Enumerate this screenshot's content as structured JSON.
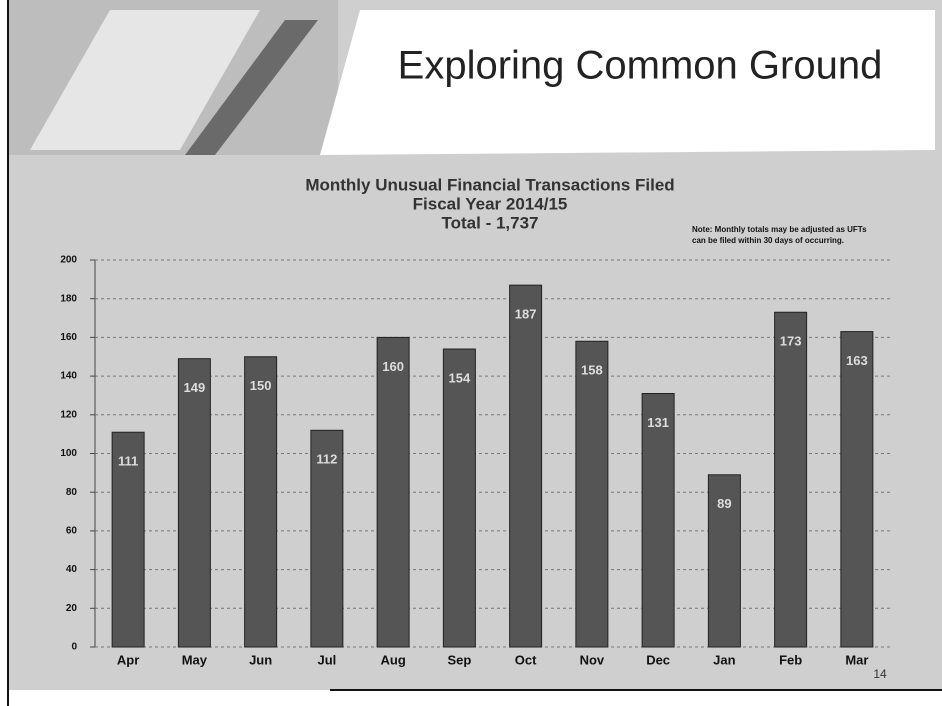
{
  "header": {
    "title": "Exploring Common Ground"
  },
  "page_number": "14",
  "chart_data": {
    "type": "bar",
    "title": "Monthly Unusual Financial Transactions Filed",
    "subtitle": "Fiscal Year 2014/15",
    "annotations": [
      "Total - 1,737",
      "Note: Monthly totals may be adjusted as UFTs",
      "can be filed within 30 days of occurring."
    ],
    "categories": [
      "Apr",
      "May",
      "Jun",
      "Jul",
      "Aug",
      "Sep",
      "Oct",
      "Nov",
      "Dec",
      "Jan",
      "Feb",
      "Mar"
    ],
    "values": [
      111,
      149,
      150,
      112,
      160,
      154,
      187,
      158,
      131,
      89,
      173,
      163
    ],
    "color": "#555555",
    "ylim": [
      0,
      200
    ],
    "yticks": [
      0,
      20,
      40,
      60,
      80,
      100,
      120,
      140,
      160,
      180,
      200
    ],
    "grid": true
  }
}
